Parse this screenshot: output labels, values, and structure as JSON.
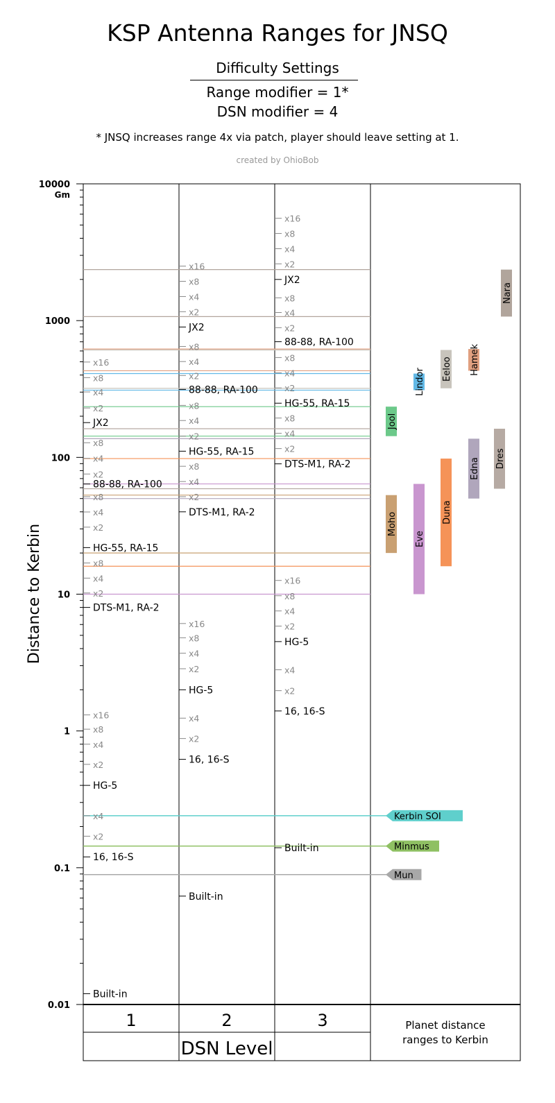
{
  "header": {
    "title": "KSP Antenna Ranges for JNSQ",
    "difficulty_heading": "Difficulty Settings",
    "range_modifier": "Range modifier = 1*",
    "dsn_modifier": "DSN modifier = 4",
    "footnote": "* JNSQ increases range 4x via patch, player should leave setting at 1.",
    "credit": "created by OhioBob"
  },
  "chart_data": {
    "type": "table",
    "scale": "log",
    "ylim": [
      0.01,
      10000
    ],
    "ylabel": "Distance to Kerbin",
    "y_unit": "Gm",
    "y_ticks": [
      "10000",
      "1000",
      "100",
      "10",
      "1",
      "0.1",
      "0.01"
    ],
    "xlabel": "DSN Level",
    "columns": [
      "1",
      "2",
      "3"
    ],
    "planet_column_label": "Planet distance ranges to Kerbin",
    "antenna_series": [
      {
        "column": "1",
        "ranges": [
          {
            "label": "Built-in",
            "value": 0.012,
            "kind": "base"
          },
          {
            "label": "16, 16-S",
            "value": 0.12,
            "kind": "base"
          },
          {
            "label": "x2",
            "value": 0.17,
            "kind": "mult"
          },
          {
            "label": "x4",
            "value": 0.24,
            "kind": "mult"
          },
          {
            "label": "HG-5",
            "value": 0.4,
            "kind": "base"
          },
          {
            "label": "x2",
            "value": 0.57,
            "kind": "mult"
          },
          {
            "label": "x4",
            "value": 0.8,
            "kind": "mult"
          },
          {
            "label": "x8",
            "value": 1.03,
            "kind": "mult"
          },
          {
            "label": "x16",
            "value": 1.31,
            "kind": "mult"
          },
          {
            "label": "DTS-M1, RA-2",
            "value": 8,
            "kind": "base"
          },
          {
            "label": "x2",
            "value": 10.2,
            "kind": "mult"
          },
          {
            "label": "x4",
            "value": 13.1,
            "kind": "mult"
          },
          {
            "label": "x8",
            "value": 16.9,
            "kind": "mult"
          },
          {
            "label": "HG-55, RA-15",
            "value": 21.9,
            "kind": "base"
          },
          {
            "label": "x2",
            "value": 30.9,
            "kind": "mult"
          },
          {
            "label": "x4",
            "value": 39.9,
            "kind": "mult"
          },
          {
            "label": "x8",
            "value": 51.6,
            "kind": "mult"
          },
          {
            "label": "88-88, RA-100",
            "value": 63.9,
            "kind": "base"
          },
          {
            "label": "x2",
            "value": 75.6,
            "kind": "mult"
          },
          {
            "label": "x4",
            "value": 98.4,
            "kind": "mult"
          },
          {
            "label": "x8",
            "value": 128,
            "kind": "mult"
          },
          {
            "label": "JX2",
            "value": 179.6,
            "kind": "base"
          },
          {
            "label": "x2",
            "value": 229.7,
            "kind": "mult"
          },
          {
            "label": "x4",
            "value": 301,
            "kind": "mult"
          },
          {
            "label": "x8",
            "value": 383,
            "kind": "mult"
          },
          {
            "label": "x16",
            "value": 498,
            "kind": "mult"
          }
        ]
      },
      {
        "column": "2",
        "ranges": [
          {
            "label": "Built-in",
            "value": 0.062,
            "kind": "base"
          },
          {
            "label": "16, 16-S",
            "value": 0.62,
            "kind": "base"
          },
          {
            "label": "x2",
            "value": 0.88,
            "kind": "mult"
          },
          {
            "label": "x4",
            "value": 1.24,
            "kind": "mult"
          },
          {
            "label": "HG-5",
            "value": 2.0,
            "kind": "base"
          },
          {
            "label": "x2",
            "value": 2.85,
            "kind": "mult"
          },
          {
            "label": "x4",
            "value": 3.7,
            "kind": "mult"
          },
          {
            "label": "x8",
            "value": 4.8,
            "kind": "mult"
          },
          {
            "label": "x16",
            "value": 6.1,
            "kind": "mult"
          },
          {
            "label": "DTS-M1, RA-2",
            "value": 40,
            "kind": "base"
          },
          {
            "label": "x2",
            "value": 51.6,
            "kind": "mult"
          },
          {
            "label": "x4",
            "value": 66.6,
            "kind": "mult"
          },
          {
            "label": "x8",
            "value": 86.1,
            "kind": "mult"
          },
          {
            "label": "HG-55, RA-15",
            "value": 111,
            "kind": "base"
          },
          {
            "label": "x2",
            "value": 143,
            "kind": "mult"
          },
          {
            "label": "x4",
            "value": 186,
            "kind": "mult"
          },
          {
            "label": "x8",
            "value": 240,
            "kind": "mult"
          },
          {
            "label": "88-88, RA-100",
            "value": 314,
            "kind": "base"
          },
          {
            "label": "x2",
            "value": 397,
            "kind": "mult"
          },
          {
            "label": "x4",
            "value": 502,
            "kind": "mult"
          },
          {
            "label": "x8",
            "value": 647,
            "kind": "mult"
          },
          {
            "label": "JX2",
            "value": 898,
            "kind": "base"
          },
          {
            "label": "x2",
            "value": 1162,
            "kind": "mult"
          },
          {
            "label": "x4",
            "value": 1500,
            "kind": "mult"
          },
          {
            "label": "x8",
            "value": 1938,
            "kind": "mult"
          },
          {
            "label": "x16",
            "value": 2502,
            "kind": "mult"
          }
        ]
      },
      {
        "column": "3",
        "ranges": [
          {
            "label": "Built-in",
            "value": 0.14,
            "kind": "base"
          },
          {
            "label": "16, 16-S",
            "value": 1.4,
            "kind": "base"
          },
          {
            "label": "x2",
            "value": 1.97,
            "kind": "mult"
          },
          {
            "label": "x4",
            "value": 2.8,
            "kind": "mult"
          },
          {
            "label": "HG-5",
            "value": 4.5,
            "kind": "base"
          },
          {
            "label": "x2",
            "value": 5.84,
            "kind": "mult"
          },
          {
            "label": "x4",
            "value": 7.54,
            "kind": "mult"
          },
          {
            "label": "x8",
            "value": 9.74,
            "kind": "mult"
          },
          {
            "label": "x16",
            "value": 12.6,
            "kind": "mult"
          },
          {
            "label": "DTS-M1, RA-2",
            "value": 89.7,
            "kind": "base"
          },
          {
            "label": "x2",
            "value": 116,
            "kind": "mult"
          },
          {
            "label": "x4",
            "value": 150,
            "kind": "mult"
          },
          {
            "label": "x8",
            "value": 194,
            "kind": "mult"
          },
          {
            "label": "HG-55, RA-15",
            "value": 249,
            "kind": "base"
          },
          {
            "label": "x2",
            "value": 322,
            "kind": "mult"
          },
          {
            "label": "x4",
            "value": 415,
            "kind": "mult"
          },
          {
            "label": "x8",
            "value": 537,
            "kind": "mult"
          },
          {
            "label": "88-88, RA-100",
            "value": 701,
            "kind": "base"
          },
          {
            "label": "x2",
            "value": 888,
            "kind": "mult"
          },
          {
            "label": "x4",
            "value": 1146,
            "kind": "mult"
          },
          {
            "label": "x8",
            "value": 1468,
            "kind": "mult"
          },
          {
            "label": "JX2",
            "value": 2000,
            "kind": "base"
          },
          {
            "label": "x2",
            "value": 2600,
            "kind": "mult"
          },
          {
            "label": "x4",
            "value": 3355,
            "kind": "mult"
          },
          {
            "label": "x8",
            "value": 4336,
            "kind": "mult"
          },
          {
            "label": "x16",
            "value": 5600,
            "kind": "mult"
          }
        ]
      }
    ],
    "planet_ranges": [
      {
        "name": "Nara",
        "min": 1070,
        "max": 2360,
        "color": "#b1a59c"
      },
      {
        "name": "Hamek",
        "min": 430,
        "max": 620,
        "color": "#e0a080"
      },
      {
        "name": "Eeloo",
        "min": 320,
        "max": 610,
        "color": "#c8c4bc"
      },
      {
        "name": "Lindor",
        "min": 310,
        "max": 410,
        "color": "#62b9e6"
      },
      {
        "name": "Jool",
        "min": 143,
        "max": 235,
        "color": "#6cc98a"
      },
      {
        "name": "Dres",
        "min": 59,
        "max": 162,
        "color": "#b6aaa3"
      },
      {
        "name": "Edna",
        "min": 50,
        "max": 137,
        "color": "#b0a6bc"
      },
      {
        "name": "Duna",
        "min": 16,
        "max": 98,
        "color": "#f59358"
      },
      {
        "name": "Eve",
        "min": 10,
        "max": 64,
        "color": "#c996cf"
      },
      {
        "name": "Moho",
        "min": 20,
        "max": 53,
        "color": "#c9a072"
      }
    ],
    "moon_markers": [
      {
        "name": "Kerbin SOI",
        "value": 0.24,
        "color": "#5fcfcc"
      },
      {
        "name": "Minmus",
        "value": 0.144,
        "color": "#8fc063"
      },
      {
        "name": "Mun",
        "value": 0.089,
        "color": "#a8a8a8"
      }
    ]
  }
}
